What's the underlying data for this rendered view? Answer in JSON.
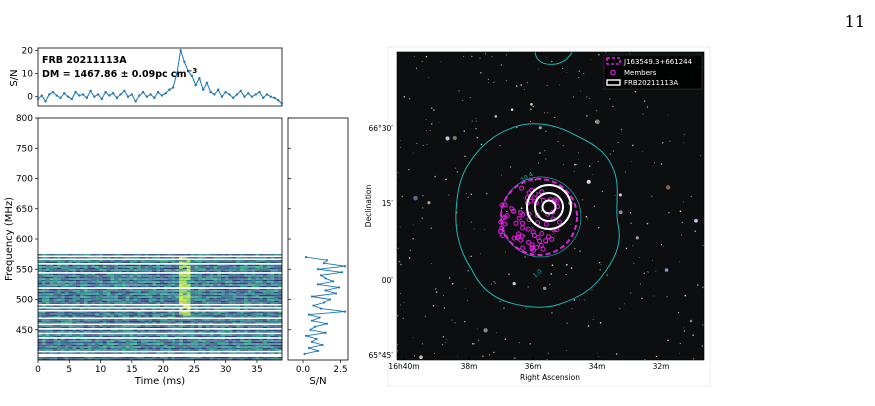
{
  "page_number": "11",
  "left_figure": {
    "pulse_profile": {
      "ylabel": "S/N",
      "yticks": [
        "0",
        "10",
        "20"
      ],
      "annotation_name": "FRB 20211113A",
      "annotation_dm": "DM = 1467.86 ± 0.09pc cm",
      "annotation_dm_sup": "−3"
    },
    "waterfall": {
      "ylabel": "Frequency (MHz)",
      "xlabel": "Time (ms)",
      "xticks": [
        "0",
        "5",
        "10",
        "15",
        "20",
        "25",
        "30",
        "35"
      ],
      "yticks": [
        "450",
        "500",
        "550",
        "600",
        "650",
        "700",
        "750",
        "800"
      ]
    },
    "spectrum": {
      "xlabel": "S/N",
      "xticks": [
        "0.0",
        "2.5"
      ]
    }
  },
  "right_figure": {
    "xlabel": "Right Ascension",
    "ylabel": "Declination",
    "ra_ticks": [
      "16h40m",
      "38m",
      "36m",
      "34m",
      "32m"
    ],
    "dec_ticks": [
      "66°30′",
      "15′",
      "00′",
      "65°45′"
    ],
    "legend": [
      "J163549.3+661244",
      "Members",
      "FRB20211113A"
    ],
    "contour_labels": [
      "10.4",
      "1.0"
    ],
    "colors": {
      "contour": "#23b5b5",
      "cluster": "#e020e0",
      "frb": "#ffffff",
      "sky": "#0d0e10"
    }
  },
  "chart_data": [
    {
      "type": "line",
      "x_unit": "ms",
      "xlim": [
        0,
        39
      ],
      "ylim": [
        -4,
        21
      ],
      "x": [
        0,
        0.6,
        1.2,
        1.8,
        2.4,
        3,
        3.6,
        4.2,
        4.8,
        5.4,
        6,
        6.6,
        7.2,
        7.8,
        8.4,
        9,
        9.6,
        10.2,
        10.8,
        11.4,
        12,
        12.6,
        13.2,
        13.8,
        14.4,
        15,
        15.6,
        16.2,
        16.8,
        17.4,
        18,
        18.6,
        19.2,
        19.8,
        20.4,
        21,
        21.6,
        22.2,
        22.8,
        23.4,
        24,
        24.6,
        25.2,
        25.8,
        26.4,
        27,
        27.6,
        28.2,
        28.8,
        29.4,
        30,
        30.6,
        31.2,
        31.8,
        32.4,
        33,
        33.6,
        34.2,
        34.8,
        35.4,
        36,
        36.6,
        37.2,
        37.8,
        38.4,
        39
      ],
      "series": [
        {
          "values": [
            -1,
            0.5,
            -2,
            1,
            2,
            0.5,
            -0.5,
            1.5,
            0,
            -1,
            2,
            0.5,
            1,
            -0.5,
            2.5,
            0,
            1,
            -1,
            2,
            0.5,
            1.5,
            -0.5,
            1,
            2.5,
            0,
            1,
            -2,
            0.5,
            2,
            0,
            1,
            -0.5,
            2,
            0.5,
            1.5,
            3,
            4,
            10,
            20,
            15,
            11,
            9,
            5,
            8,
            3,
            6,
            2,
            1,
            3,
            0,
            2,
            1,
            -0.5,
            1,
            2.5,
            0,
            1.5,
            0,
            1,
            2,
            -0.5,
            1,
            0,
            -0.5,
            -1.5,
            -3
          ]
        }
      ]
    },
    {
      "type": "heatmap",
      "x_unit": "ms",
      "y_unit": "MHz",
      "xlim": [
        0,
        39
      ],
      "ylim": [
        400,
        800
      ],
      "data_band_mhz": [
        400,
        575
      ],
      "burst_time_ms": 23.5
    },
    {
      "type": "line",
      "xlim": [
        -1,
        3
      ],
      "ylim": [
        400,
        800
      ],
      "y": [
        410,
        415,
        420,
        425,
        430,
        435,
        440,
        445,
        450,
        455,
        460,
        465,
        470,
        475,
        480,
        485,
        490,
        495,
        500,
        505,
        510,
        515,
        520,
        525,
        530,
        535,
        540,
        545,
        550,
        555,
        560,
        565,
        570
      ],
      "series": [
        {
          "values": [
            0.1,
            1.0,
            0.4,
            1.3,
            0.6,
            0.9,
            0.2,
            1.5,
            0.5,
            0.8,
            1.6,
            0.6,
            1.1,
            0.4,
            2.8,
            1.2,
            0.7,
            1.4,
            1.8,
            0.6,
            2.2,
            1.5,
            2.4,
            1.0,
            2.0,
            1.5,
            1.2,
            2.6,
            1.0,
            2.8,
            1.4,
            1.6,
            0.2
          ]
        }
      ]
    }
  ]
}
